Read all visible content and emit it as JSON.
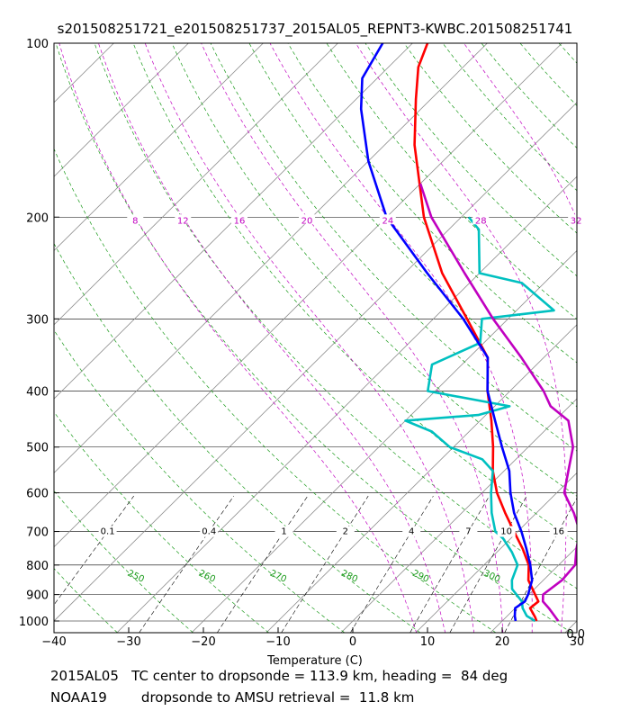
{
  "chart_data": {
    "type": "line",
    "chart_kind": "skew-T log-P sounding",
    "title": "s201508251721_e201508251737_2015AL05_REPNT3-KWBC.201508251741",
    "xlabel": "Temperature (C)",
    "ylabel": "",
    "xlim": [
      -40,
      30
    ],
    "ylim_hpa": [
      1050,
      100
    ],
    "x_ticks": [
      "−40",
      "−30",
      "−20",
      "−10",
      "0",
      "10",
      "20",
      "30"
    ],
    "x_tick_values": [
      -40,
      -30,
      -20,
      -10,
      0,
      10,
      20,
      30
    ],
    "y_ticks": [
      "100",
      "200",
      "300",
      "400",
      "500",
      "600",
      "700",
      "800",
      "900",
      "1000"
    ],
    "y_tick_values": [
      100,
      200,
      300,
      400,
      500,
      600,
      700,
      800,
      900,
      1000
    ],
    "skew_deg_per_decade": 78,
    "isotherms_c": [
      -150,
      -140,
      -130,
      -120,
      -110,
      -100,
      -90,
      -80,
      -70,
      -60,
      -50,
      -40,
      -30,
      -20,
      -10,
      0,
      10,
      20,
      30,
      40
    ],
    "dry_adiabats_k": [
      230,
      240,
      250,
      260,
      270,
      280,
      290,
      300,
      310,
      320,
      330,
      340,
      350,
      360,
      370,
      380,
      390,
      400,
      410,
      420,
      430,
      440,
      450,
      460,
      470
    ],
    "dry_adiabat_labels": [
      {
        "text": "250",
        "theta": 250
      },
      {
        "text": "260",
        "theta": 260
      },
      {
        "text": "270",
        "theta": 270
      },
      {
        "text": "280",
        "theta": 280
      },
      {
        "text": "290",
        "theta": 290
      },
      {
        "text": "300",
        "theta": 300
      }
    ],
    "moist_adiabats_c": [
      8,
      12,
      16,
      20,
      24,
      28,
      32
    ],
    "moist_adiabat_labels": [
      "8",
      "12",
      "16",
      "20",
      "24",
      "28",
      "32"
    ],
    "mixing_ratios_gkg": [
      0.1,
      0.4,
      1,
      2,
      4,
      7,
      10,
      16
    ],
    "mixing_ratio_labels": [
      "0.1",
      "0.4",
      "1",
      "2",
      "4",
      "7",
      "10",
      "16"
    ],
    "series": [
      {
        "name": "temperature",
        "color": "#ff0000",
        "points": [
          [
            1000,
            24.6
          ],
          [
            985,
            23.9
          ],
          [
            950,
            22.0
          ],
          [
            925,
            22.2
          ],
          [
            850,
            18.0
          ],
          [
            800,
            16.0
          ],
          [
            750,
            13.0
          ],
          [
            700,
            9.5
          ],
          [
            650,
            5.8
          ],
          [
            600,
            2.0
          ],
          [
            550,
            -1.5
          ],
          [
            500,
            -4.7
          ],
          [
            450,
            -8.5
          ],
          [
            400,
            -13.0
          ],
          [
            350,
            -17.5
          ],
          [
            300,
            -25.5
          ],
          [
            250,
            -35.0
          ],
          [
            200,
            -45.0
          ],
          [
            150,
            -56.0
          ],
          [
            125,
            -62.0
          ],
          [
            110,
            -66.0
          ],
          [
            100,
            -68.0
          ]
        ]
      },
      {
        "name": "dewpoint",
        "color": "#00c0c0",
        "points": [
          [
            1000,
            24.4
          ],
          [
            980,
            22.6
          ],
          [
            950,
            21.0
          ],
          [
            925,
            20.0
          ],
          [
            880,
            17.0
          ],
          [
            850,
            15.8
          ],
          [
            800,
            14.5
          ],
          [
            760,
            12.0
          ],
          [
            720,
            9.0
          ],
          [
            700,
            7.0
          ],
          [
            650,
            4.0
          ],
          [
            600,
            1.2
          ],
          [
            550,
            -1.5
          ],
          [
            525,
            -4.5
          ],
          [
            500,
            -10.5
          ],
          [
            470,
            -15.0
          ],
          [
            450,
            -20.0
          ],
          [
            440,
            -11.0
          ],
          [
            425,
            -8.0
          ],
          [
            400,
            -21.0
          ],
          [
            360,
            -24.0
          ],
          [
            330,
            -20.5
          ],
          [
            300,
            -23.5
          ],
          [
            290,
            -15.0
          ],
          [
            260,
            -23.0
          ],
          [
            250,
            -30.0
          ],
          [
            210,
            -36.0
          ],
          [
            200,
            -39.0
          ]
        ]
      },
      {
        "name": "amsu-retrieval",
        "color": "#0000ff",
        "points": [
          [
            1000,
            21.8
          ],
          [
            980,
            21.0
          ],
          [
            950,
            20.0
          ],
          [
            925,
            20.4
          ],
          [
            900,
            19.9
          ],
          [
            850,
            18.5
          ],
          [
            800,
            16.2
          ],
          [
            750,
            13.5
          ],
          [
            700,
            10.5
          ],
          [
            650,
            7.0
          ],
          [
            600,
            3.8
          ],
          [
            550,
            0.7
          ],
          [
            500,
            -3.5
          ],
          [
            450,
            -8.0
          ],
          [
            400,
            -13.0
          ],
          [
            350,
            -17.5
          ],
          [
            300,
            -26.0
          ],
          [
            250,
            -37.0
          ],
          [
            200,
            -50.0
          ],
          [
            160,
            -60.0
          ],
          [
            130,
            -68.0
          ],
          [
            115,
            -72.0
          ],
          [
            100,
            -74.0
          ]
        ]
      },
      {
        "name": "moist-adiabat-parcel",
        "color": "#c000c0",
        "points": [
          [
            1000,
            27.5
          ],
          [
            950,
            24.5
          ],
          [
            925,
            22.8
          ],
          [
            900,
            21.9
          ],
          [
            850,
            22.5
          ],
          [
            800,
            22.2
          ],
          [
            750,
            20.2
          ],
          [
            700,
            18.3
          ],
          [
            650,
            15.0
          ],
          [
            600,
            11.0
          ],
          [
            550,
            8.6
          ],
          [
            500,
            6.0
          ],
          [
            450,
            1.8
          ],
          [
            425,
            -2.5
          ],
          [
            400,
            -5.5
          ],
          [
            350,
            -13.0
          ],
          [
            300,
            -22.0
          ],
          [
            250,
            -32.0
          ],
          [
            200,
            -44.0
          ],
          [
            175,
            -50.0
          ]
        ]
      }
    ],
    "corner_text_bottom_right": "0.0",
    "annotations": [
      "2015AL05   TC center to dropsonde = 113.9 km, heading =  84 deg",
      "NOAA19        dropsonde to AMSU retrieval =  11.8 km"
    ]
  }
}
